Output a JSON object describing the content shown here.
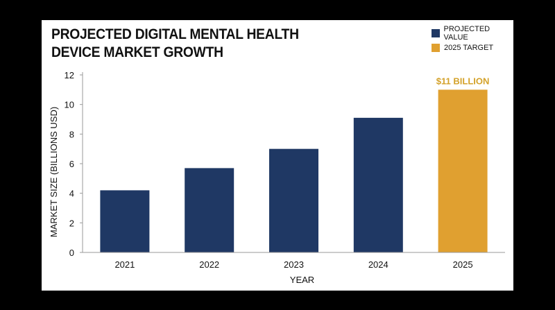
{
  "chart_data": {
    "type": "bar",
    "title": "PROJECTED DIGITAL MENTAL HEALTH DEVICE MARKET GROWTH",
    "xlabel": "YEAR",
    "ylabel": "MARKET SIZE (BILLIONS USD)",
    "categories": [
      "2021",
      "2022",
      "2023",
      "2024",
      "2025"
    ],
    "values": [
      4.2,
      5.7,
      7.0,
      9.1,
      11.0
    ],
    "ylim": [
      0,
      12
    ],
    "yticks": [
      0,
      2,
      4,
      6,
      8,
      10,
      12
    ],
    "grid": false,
    "legend_position": "top-right",
    "series": [
      {
        "name": "PROJECTED VALUE",
        "color": "#1f3864"
      },
      {
        "name": "2025 TARGET",
        "color": "#e0a030"
      }
    ],
    "bar_series": [
      0,
      0,
      0,
      0,
      1
    ],
    "annotations": [
      {
        "category": "2025",
        "text": "$11 BILLION",
        "color": "#d4a22a"
      }
    ]
  }
}
